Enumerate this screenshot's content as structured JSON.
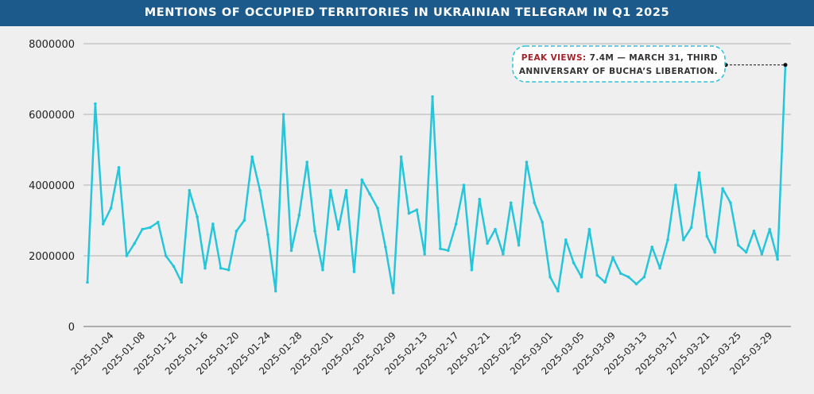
{
  "title": "MENTIONS OF OCCUPIED TERRITORIES IN UKRAINIAN TELEGRAM IN Q1 2025",
  "colors": {
    "header": "#1b5a8b",
    "line": "#26c6da",
    "grid": "#bdbdbd",
    "highlight": "#a8222a",
    "background": "#efefef"
  },
  "chart_data": {
    "type": "line",
    "title": "MENTIONS OF OCCUPIED TERRITORIES IN UKRAINIAN TELEGRAM IN Q1 2025",
    "xlabel": "",
    "ylabel": "",
    "start_date": "2025-01-01",
    "ylim": [
      0,
      8000000
    ],
    "yticks": [
      "0",
      "2000000",
      "4000000",
      "6000000",
      "8000000"
    ],
    "xticks": [
      "2025-01-04",
      "2025-01-08",
      "2025-01-12",
      "2025-01-16",
      "2025-01-20",
      "2025-01-24",
      "2025-01-28",
      "2025-02-01",
      "2025-02-05",
      "2025-02-09",
      "2025-02-13",
      "2025-02-17",
      "2025-02-21",
      "2025-02-25",
      "2025-03-01",
      "2025-03-05",
      "2025-03-09",
      "2025-03-13",
      "2025-03-17",
      "2025-03-21",
      "2025-03-25",
      "2025-03-29"
    ],
    "grid": true,
    "values": [
      1250000,
      6300000,
      2900000,
      3350000,
      4500000,
      2000000,
      2350000,
      2750000,
      2800000,
      2950000,
      2000000,
      1700000,
      1250000,
      3850000,
      3100000,
      1650000,
      2900000,
      1650000,
      1600000,
      2700000,
      3000000,
      4800000,
      3850000,
      2600000,
      1000000,
      6000000,
      2150000,
      3150000,
      4650000,
      2700000,
      1600000,
      3850000,
      2750000,
      3850000,
      1550000,
      4150000,
      3750000,
      3350000,
      2250000,
      950000,
      4800000,
      3200000,
      3300000,
      2050000,
      6500000,
      2200000,
      2150000,
      2900000,
      4000000,
      1600000,
      3600000,
      2350000,
      2750000,
      2050000,
      3500000,
      2300000,
      4650000,
      3500000,
      2950000,
      1400000,
      1000000,
      2450000,
      1800000,
      1400000,
      2750000,
      1450000,
      1250000,
      1950000,
      1500000,
      1400000,
      1200000,
      1400000,
      2250000,
      1650000,
      2450000,
      4000000,
      2450000,
      2800000,
      4350000,
      2550000,
      2100000,
      3900000,
      3500000,
      2300000,
      2100000,
      2700000,
      2050000,
      2750000,
      1900000,
      7400000
    ],
    "annotation": {
      "label": "PEAK VIEWS:",
      "line1": "7.4M — MARCH 31, THIRD",
      "line2": "ANNIVERSARY OF BUCHA’S LIBERATION.",
      "date": "2025-03-31",
      "value": 7400000
    }
  }
}
